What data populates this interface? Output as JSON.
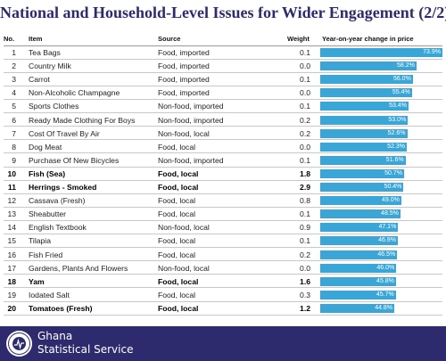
{
  "title": "National and Household-Level Issues for Wider Engagement (2/2)",
  "headers": {
    "no": "No.",
    "item": "Item",
    "source": "Source",
    "weight": "Weight",
    "change": "Year-on-year change in price"
  },
  "chart_data": {
    "type": "table",
    "title": "National and Household-Level Issues for Wider Engagement (2/2)",
    "columns": [
      "No.",
      "Item",
      "Source",
      "Weight",
      "Year-on-year change in price"
    ],
    "rows": [
      {
        "no": "1",
        "item": "Tea Bags",
        "source": "Food, imported",
        "weight": "0.1",
        "change": 73.9,
        "label": "73.9%",
        "bold": false
      },
      {
        "no": "2",
        "item": "Country Milk",
        "source": "Food, imported",
        "weight": "0.0",
        "change": 58.2,
        "label": "58.2%",
        "bold": false
      },
      {
        "no": "3",
        "item": "Carrot",
        "source": "Food, imported",
        "weight": "0.1",
        "change": 56.0,
        "label": "56.0%",
        "bold": false
      },
      {
        "no": "4",
        "item": "Non-Alcoholic Champagne",
        "source": "Food, imported",
        "weight": "0.0",
        "change": 55.4,
        "label": "55.4%",
        "bold": false
      },
      {
        "no": "5",
        "item": "Sports Clothes",
        "source": "Non-food, imported",
        "weight": "0.1",
        "change": 53.4,
        "label": "53.4%",
        "bold": false
      },
      {
        "no": "6",
        "item": "Ready Made Clothing For Boys",
        "source": "Non-food, imported",
        "weight": "0.2",
        "change": 53.0,
        "label": "53.0%",
        "bold": false
      },
      {
        "no": "7",
        "item": "Cost Of Travel By Air",
        "source": "Non-food, local",
        "weight": "0.2",
        "change": 52.6,
        "label": "52.6%",
        "bold": false
      },
      {
        "no": "8",
        "item": "Dog Meat",
        "source": "Food, local",
        "weight": "0.0",
        "change": 52.3,
        "label": "52.3%",
        "bold": false
      },
      {
        "no": "9",
        "item": "Purchase Of New Bicycles",
        "source": "Non-food, imported",
        "weight": "0.1",
        "change": 51.6,
        "label": "51.6%",
        "bold": false
      },
      {
        "no": "10",
        "item": "Fish (Sea)",
        "source": "Food, local",
        "weight": "1.8",
        "change": 50.7,
        "label": "50.7%",
        "bold": true
      },
      {
        "no": "11",
        "item": "Herrings - Smoked",
        "source": "Food, local",
        "weight": "2.9",
        "change": 50.4,
        "label": "50.4%",
        "bold": true
      },
      {
        "no": "12",
        "item": "Cassava (Fresh)",
        "source": "Food, local",
        "weight": "0.8",
        "change": 49.0,
        "label": "49.0%",
        "bold": false
      },
      {
        "no": "13",
        "item": "Sheabutter",
        "source": "Food, local",
        "weight": "0.1",
        "change": 48.5,
        "label": "48.5%",
        "bold": false
      },
      {
        "no": "14",
        "item": "English Textbook",
        "source": "Non-food, local",
        "weight": "0.9",
        "change": 47.1,
        "label": "47.1%",
        "bold": false
      },
      {
        "no": "15",
        "item": "Tilapia",
        "source": "Food, local",
        "weight": "0.1",
        "change": 46.9,
        "label": "46.9%",
        "bold": false
      },
      {
        "no": "16",
        "item": "Fish Fried",
        "source": "Food, local",
        "weight": "0.2",
        "change": 46.5,
        "label": "46.5%",
        "bold": false
      },
      {
        "no": "17",
        "item": "Gardens, Plants And Flowers",
        "source": "Non-food, local",
        "weight": "0.0",
        "change": 46.0,
        "label": "46.0%",
        "bold": false
      },
      {
        "no": "18",
        "item": "Yam",
        "source": "Food, local",
        "weight": "1.6",
        "change": 45.8,
        "label": "45.8%",
        "bold": true
      },
      {
        "no": "19",
        "item": "Iodated Salt",
        "source": "Food, local",
        "weight": "0.3",
        "change": 45.7,
        "label": "45.7%",
        "bold": false
      },
      {
        "no": "20",
        "item": "Tomatoes (Fresh)",
        "source": "Food, local",
        "weight": "1.2",
        "change": 44.8,
        "label": "44.8%",
        "bold": true
      }
    ],
    "bar_max": 73.9,
    "bar_color": "#3aa6d8"
  },
  "colors": {
    "title": "#2e2a6e",
    "footer": "#2e2a6e",
    "bar": "#3aa6d8"
  },
  "footer": {
    "brand_line1": "Ghana",
    "brand_line2": "Statistical Service",
    "logo_text": "GHANA STATISTICAL SERVICE",
    "logo_icon": "gss-seal-icon"
  }
}
